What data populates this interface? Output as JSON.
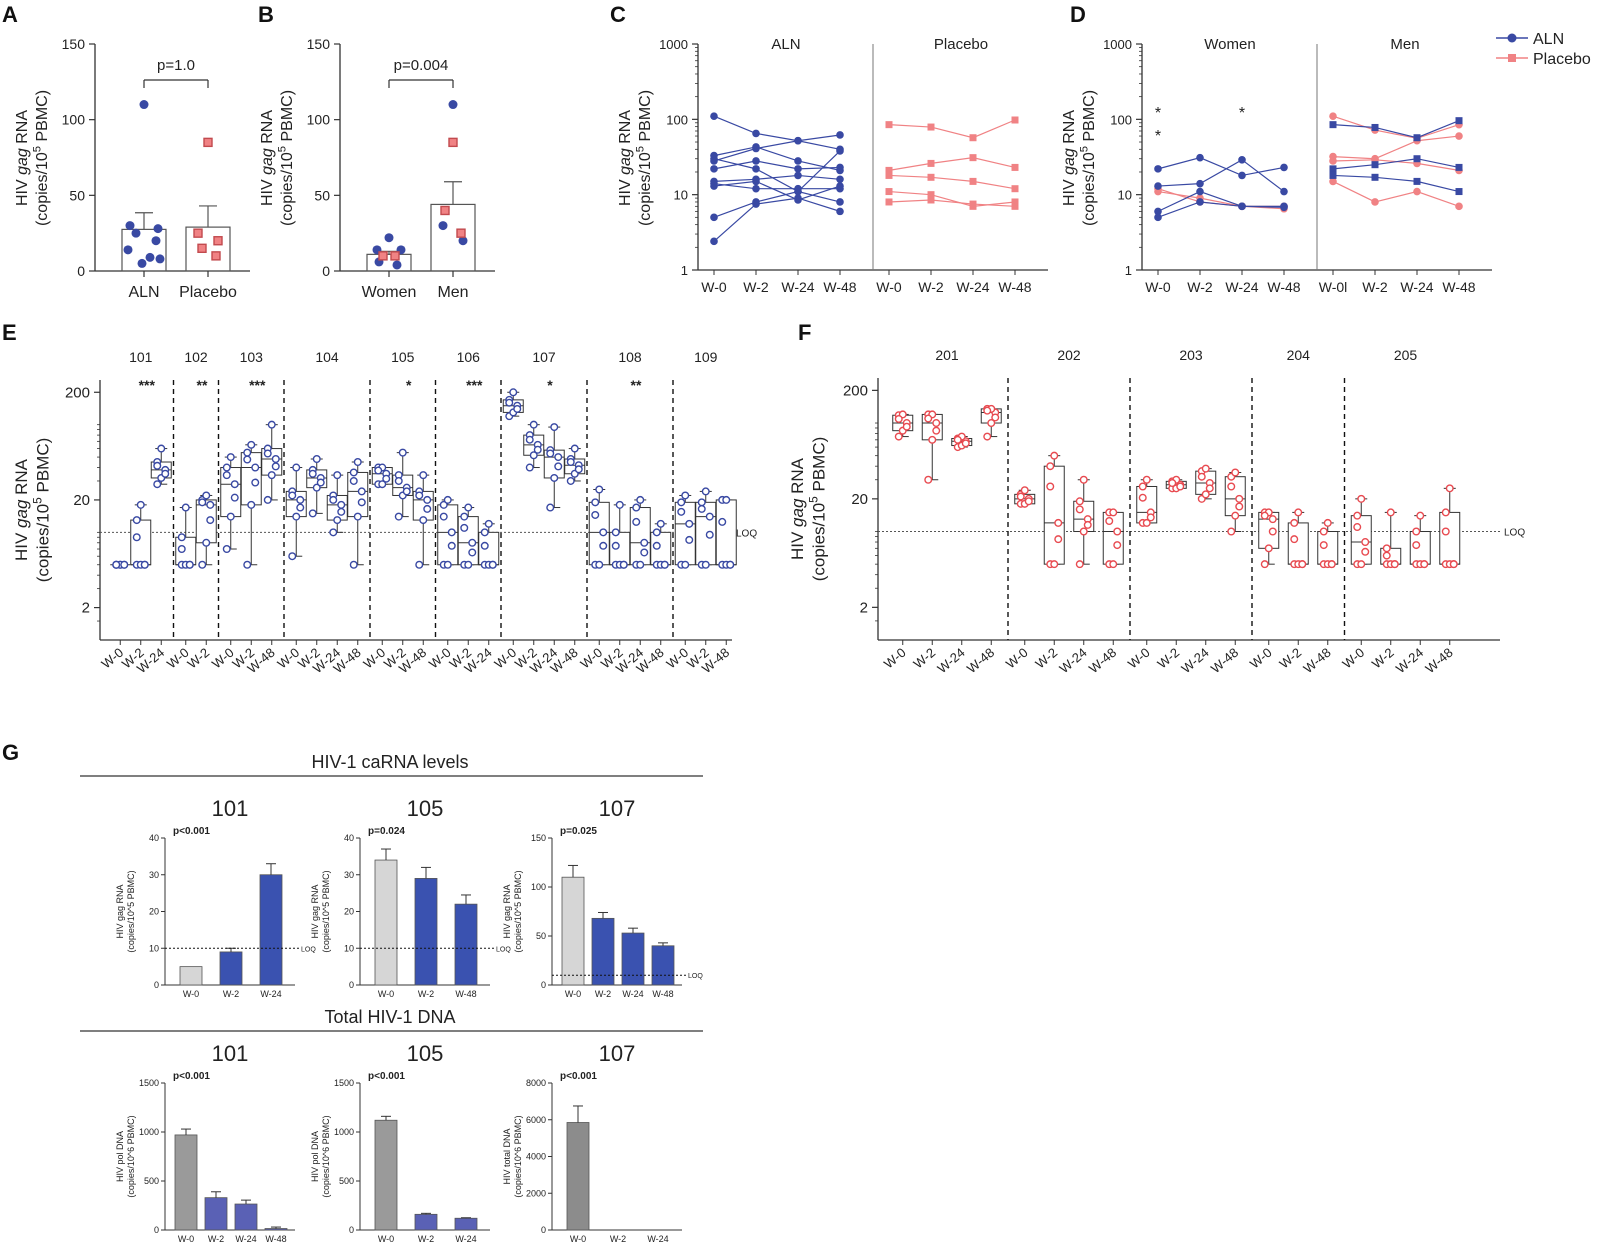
{
  "colors": {
    "aln": "#3949a3",
    "placebo": "#f08284",
    "placebo_box": "#e84a50",
    "aln_box": "#3949a3",
    "w0_bar": "#d6d6d6",
    "w0_dna": "#9a9a9a",
    "w0_dna107": "#8c8c8c",
    "dna_bar": "#5a61b5",
    "rna_bar": "#3a52b0"
  },
  "panel_letters": [
    "A",
    "B",
    "C",
    "D",
    "E",
    "F",
    "G"
  ],
  "panel_a": {
    "ylabel_line1": "HIV gag RNA",
    "ylabel_line2": "(copies/10^5 PBMC)",
    "ylabel_pre": "HIV ",
    "ylabel_gag": "gag",
    "ylabel_post": " RNA",
    "ylabel2_pre": "(copies/10",
    "ylabel2_sup": "5",
    "ylabel2_post": " PBMC)",
    "yticks": [
      0,
      50,
      100,
      150
    ],
    "ylim": [
      0,
      150
    ],
    "categories": [
      "ALN",
      "Placebo"
    ],
    "pvalue": "p=1.0",
    "bar_means": [
      27.5,
      29
    ],
    "bar_sem": [
      11,
      14
    ],
    "points": [
      [
        110,
        30,
        28,
        25,
        20,
        14,
        9,
        5,
        8
      ],
      [
        85,
        25,
        20,
        15,
        10
      ]
    ]
  },
  "panel_b": {
    "categories": [
      "Women",
      "Men"
    ],
    "pvalue": "p=0.004",
    "yticks": [
      0,
      50,
      100,
      150
    ],
    "ylim": [
      0,
      150
    ],
    "bar_means": [
      11,
      44
    ],
    "bar_sem": [
      2,
      15
    ],
    "points_aln": [
      [
        22,
        14,
        14,
        6,
        4
      ],
      [
        110,
        30,
        20
      ]
    ],
    "points_placebo": [
      [
        10,
        10
      ],
      [
        85,
        40,
        25
      ]
    ]
  },
  "panel_c": {
    "groups": [
      "ALN",
      "Placebo"
    ],
    "yticks": [
      "1",
      "10",
      "100",
      "1000"
    ],
    "xticks": [
      "W-0",
      "W-2",
      "W-24",
      "W-48"
    ],
    "aln_series": [
      [
        110,
        65,
        52,
        62
      ],
      [
        33,
        43,
        28,
        21
      ],
      [
        30,
        22,
        11,
        38
      ],
      [
        22,
        28,
        22,
        23
      ],
      [
        15,
        16,
        18,
        16
      ],
      [
        14,
        12,
        12,
        12
      ],
      [
        5,
        8,
        11,
        8
      ],
      [
        2.4,
        7.5,
        9,
        6
      ],
      [
        13,
        15,
        8.5,
        13
      ],
      [
        28,
        41,
        52,
        40
      ]
    ],
    "placebo_series": [
      [
        85,
        79,
        57,
        98
      ],
      [
        21,
        26,
        31,
        23
      ],
      [
        18,
        17,
        15,
        12
      ],
      [
        11,
        10,
        7,
        8
      ],
      [
        8,
        8.5,
        7.5,
        7
      ]
    ]
  },
  "panel_d": {
    "groups": [
      "Women",
      "Men"
    ],
    "yticks": [
      "1",
      "10",
      "100",
      "1000"
    ],
    "xticks_women": [
      "W-0",
      "W-2",
      "W-24",
      "W-48"
    ],
    "xticks_men": [
      "W-0l",
      "W-2",
      "W-24",
      "W-48"
    ],
    "legend": [
      "ALN",
      "Placebo"
    ],
    "stars": [
      "*",
      "*",
      "*"
    ],
    "women_aln": [
      [
        22,
        31,
        18,
        23
      ],
      [
        13,
        14,
        29,
        11
      ],
      [
        6,
        11,
        7,
        7
      ],
      [
        5,
        8,
        7,
        6.8
      ]
    ],
    "women_placebo": [
      [
        11,
        9,
        7,
        7
      ],
      [
        12,
        8,
        7,
        6.5
      ]
    ],
    "men_aln": [
      [
        85,
        78,
        57,
        96
      ],
      [
        22,
        25,
        30,
        23
      ],
      [
        18,
        17,
        15,
        11
      ]
    ],
    "men_placebo": [
      [
        110,
        72,
        56,
        85
      ],
      [
        32,
        30,
        52,
        60
      ],
      [
        28,
        29,
        26,
        21
      ],
      [
        15,
        8,
        11,
        7
      ]
    ]
  },
  "panel_e": {
    "participants": [
      "101",
      "102",
      "103",
      "104",
      "105",
      "106",
      "107",
      "108",
      "109"
    ],
    "stars": [
      "***",
      "**",
      "***",
      "",
      "*",
      "***",
      "*",
      "**",
      ""
    ],
    "yticks": [
      "2",
      "20",
      "200"
    ],
    "loq": "LOQ",
    "xlabels": [
      [
        "W-0",
        "W-2",
        "W-24"
      ],
      [
        "W-0",
        "W-2"
      ],
      [
        "W-0",
        "W-2",
        "W-48"
      ],
      [
        "W-0",
        "W-2",
        "W-24",
        "W-48"
      ],
      [
        "W-0",
        "W-2",
        "W-48"
      ],
      [
        "W-0",
        "W-2",
        "W-24"
      ],
      [
        "W-0",
        "W-2",
        "W-24",
        "W-48"
      ],
      [
        "W-0",
        "W-2",
        "W-24",
        "W-48"
      ],
      [
        "W-0",
        "W-2",
        "W-48"
      ]
    ],
    "boxes": [
      [
        [
          5,
          5,
          5,
          5,
          5
        ],
        [
          5,
          5,
          5,
          13,
          18
        ],
        [
          28,
          32,
          38,
          45,
          60
        ]
      ],
      [
        [
          5,
          5,
          5,
          9,
          17
        ],
        [
          5,
          8,
          18,
          20,
          22
        ]
      ],
      [
        [
          7,
          14,
          28,
          40,
          50
        ],
        [
          5,
          18,
          40,
          55,
          65
        ],
        [
          20,
          34,
          48,
          60,
          100
        ]
      ],
      [
        [
          6,
          14,
          20,
          24,
          40
        ],
        [
          15,
          26,
          32,
          38,
          48
        ],
        [
          10,
          13,
          18,
          22,
          34
        ],
        [
          5,
          14,
          24,
          36,
          45
        ]
      ],
      [
        [
          28,
          28,
          35,
          40,
          40
        ],
        [
          14,
          22,
          26,
          34,
          55
        ],
        [
          5,
          13,
          20,
          24,
          34
        ]
      ],
      [
        [
          5,
          5,
          10,
          18,
          20
        ],
        [
          5,
          5,
          8,
          14,
          17
        ],
        [
          5,
          5,
          5,
          10,
          12
        ]
      ],
      [
        [
          120,
          130,
          150,
          170,
          200
        ],
        [
          40,
          52,
          65,
          80,
          100
        ],
        [
          17,
          32,
          50,
          58,
          95
        ],
        [
          30,
          35,
          42,
          48,
          60
        ]
      ],
      [
        [
          5,
          5,
          10,
          19,
          25
        ],
        [
          5,
          5,
          5,
          10,
          18
        ],
        [
          5,
          5,
          8,
          17,
          20
        ],
        [
          5,
          5,
          5,
          10,
          12
        ]
      ],
      [
        [
          5,
          5,
          12,
          19,
          22
        ],
        [
          5,
          5,
          14,
          19,
          24
        ],
        [
          5,
          5,
          5,
          20,
          20
        ]
      ]
    ],
    "ylabel_line1": "HIV gag RNA",
    "ylabel_line2": "(copies/10^5 PBMC)"
  },
  "panel_f": {
    "participants": [
      "201",
      "202",
      "203",
      "204",
      "205"
    ],
    "yticks": [
      "2",
      "20",
      "200"
    ],
    "loq": "LOQ",
    "xlabels": [
      [
        "W-0",
        "W-2",
        "W-24",
        "W-48"
      ],
      [
        "W-0",
        "W-2",
        "W-24",
        "W-48"
      ],
      [
        "W-0",
        "W-2",
        "W-24",
        "W-48"
      ],
      [
        "W-0",
        "W-2",
        "W-48"
      ],
      [
        "W-0",
        "W-2",
        "W-24",
        "W-48"
      ]
    ],
    "boxes": [
      [
        [
          75,
          85,
          100,
          118,
          120
        ],
        [
          30,
          70,
          100,
          120,
          120
        ],
        [
          60,
          62,
          68,
          72,
          75
        ],
        [
          75,
          100,
          125,
          135,
          135
        ]
      ],
      [
        [
          18,
          18,
          20,
          22,
          24
        ],
        [
          5,
          5,
          12,
          40,
          50
        ],
        [
          5,
          10,
          13,
          19,
          30
        ],
        [
          5,
          5,
          10,
          15,
          15
        ]
      ],
      [
        [
          12,
          12,
          15,
          26,
          30
        ],
        [
          25,
          25,
          27,
          29,
          30
        ],
        [
          20,
          22,
          28,
          36,
          38
        ],
        [
          10,
          14,
          20,
          32,
          35
        ]
      ],
      [
        [
          5,
          7,
          13,
          15,
          15
        ],
        [
          5,
          5,
          5,
          12,
          15
        ],
        [
          5,
          5,
          5,
          10,
          12
        ]
      ],
      [
        [
          5,
          5,
          8,
          14,
          20
        ],
        [
          5,
          5,
          5,
          7,
          15
        ],
        [
          5,
          5,
          5,
          10,
          14
        ],
        [
          5,
          5,
          5,
          15,
          25
        ]
      ]
    ]
  },
  "panel_g": {
    "title_rna": "HIV-1 caRNA levels",
    "title_dna": "Total HIV-1 DNA",
    "rna_charts": [
      {
        "participant": "101",
        "pvalue": "p<0.001",
        "ylabel1": "HIV gag RNA",
        "ylabel2": "(copies/10^5 PBMC)",
        "yticks": [
          0,
          10,
          20,
          30,
          40
        ],
        "ylim": [
          0,
          40
        ],
        "categories": [
          "W-0",
          "W-2",
          "W-24"
        ],
        "values": [
          5,
          9,
          30
        ],
        "errors": [
          0,
          1,
          3
        ],
        "loq": 10,
        "loq_label": "LOQ"
      },
      {
        "participant": "105",
        "pvalue": "p=0.024",
        "ylabel1": "HIV gag RNA",
        "ylabel2": "(copies/10^5 PBMC)",
        "yticks": [
          0,
          10,
          20,
          30,
          40
        ],
        "ylim": [
          0,
          40
        ],
        "categories": [
          "W-0",
          "W-2",
          "W-48"
        ],
        "values": [
          34,
          29,
          22
        ],
        "errors": [
          3,
          3,
          2.5
        ],
        "loq": 10,
        "loq_label": "LOQ"
      },
      {
        "participant": "107",
        "pvalue": "p=0.025",
        "ylabel1": "HIV gag RNA",
        "ylabel2": "(copies/10^5 PBMC)",
        "yticks": [
          0,
          50,
          100,
          150
        ],
        "ylim": [
          0,
          150
        ],
        "categories": [
          "W-0",
          "W-2",
          "W-24",
          "W-48"
        ],
        "values": [
          110,
          68,
          53,
          40
        ],
        "errors": [
          12,
          6,
          5,
          3
        ],
        "loq": 10,
        "loq_label": "LOQ"
      }
    ],
    "dna_charts": [
      {
        "participant": "101",
        "pvalue": "p<0.001",
        "ylabel1": "HIV pol DNA",
        "ylabel2": "(copies/10^6 PBMC)",
        "yticks": [
          0,
          500,
          1000,
          1500
        ],
        "ylim": [
          0,
          1500
        ],
        "categories": [
          "W-0",
          "W-2",
          "W-24",
          "W-48"
        ],
        "values": [
          970,
          330,
          265,
          15
        ],
        "errors": [
          60,
          60,
          40,
          15
        ]
      },
      {
        "participant": "105",
        "pvalue": "p<0.001",
        "ylabel1": "HIV pol DNA",
        "ylabel2": "(copies/10^6 PBMC)",
        "yticks": [
          0,
          500,
          1000,
          1500
        ],
        "ylim": [
          0,
          1500
        ],
        "categories": [
          "W-0",
          "W-2",
          "W-24"
        ],
        "values": [
          1120,
          160,
          120
        ],
        "errors": [
          40,
          10,
          5
        ]
      },
      {
        "participant": "107",
        "pvalue": "p<0.001",
        "ylabel1": "HIV total DNA",
        "ylabel2": "(copies/10^6 PBMC)",
        "yticks": [
          0,
          2000,
          4000,
          6000,
          8000
        ],
        "ylim": [
          0,
          8000
        ],
        "categories": [
          "W-0",
          "W-2",
          "W-24"
        ],
        "values": [
          5850,
          0,
          0
        ],
        "errors": [
          900,
          0,
          0
        ]
      }
    ]
  },
  "chart_data": [
    {
      "type": "bar",
      "title": "A",
      "categories": [
        "ALN",
        "Placebo"
      ],
      "values": [
        27.5,
        29
      ],
      "ylabel": "HIV gag RNA (copies/10^5 PBMC)",
      "ylim": [
        0,
        150
      ],
      "annotation": "p=1.0"
    },
    {
      "type": "bar",
      "title": "B",
      "categories": [
        "Women",
        "Men"
      ],
      "values": [
        11,
        44
      ],
      "ylabel": "HIV gag RNA (copies/10^5 PBMC)",
      "ylim": [
        0,
        150
      ],
      "annotation": "p=0.004"
    },
    {
      "type": "line",
      "title": "C",
      "x": [
        "W-0",
        "W-2",
        "W-24",
        "W-48"
      ],
      "yscale": "log",
      "ylim": [
        1,
        1000
      ],
      "groups": [
        "ALN",
        "Placebo"
      ]
    },
    {
      "type": "line",
      "title": "D",
      "x": [
        "W-0",
        "W-2",
        "W-24",
        "W-48"
      ],
      "yscale": "log",
      "ylim": [
        1,
        1000
      ],
      "groups": [
        "Women",
        "Men"
      ],
      "legend": [
        "ALN",
        "Placebo"
      ]
    },
    {
      "type": "box",
      "title": "E",
      "participants": [
        "101",
        "102",
        "103",
        "104",
        "105",
        "106",
        "107",
        "108",
        "109"
      ],
      "yscale": "log",
      "ylim": [
        1,
        200
      ]
    },
    {
      "type": "box",
      "title": "F",
      "participants": [
        "201",
        "202",
        "203",
        "204",
        "205"
      ],
      "yscale": "log",
      "ylim": [
        1,
        200
      ]
    },
    {
      "type": "bar",
      "title": "G",
      "subtitle": "HIV-1 caRNA levels / Total HIV-1 DNA"
    }
  ]
}
